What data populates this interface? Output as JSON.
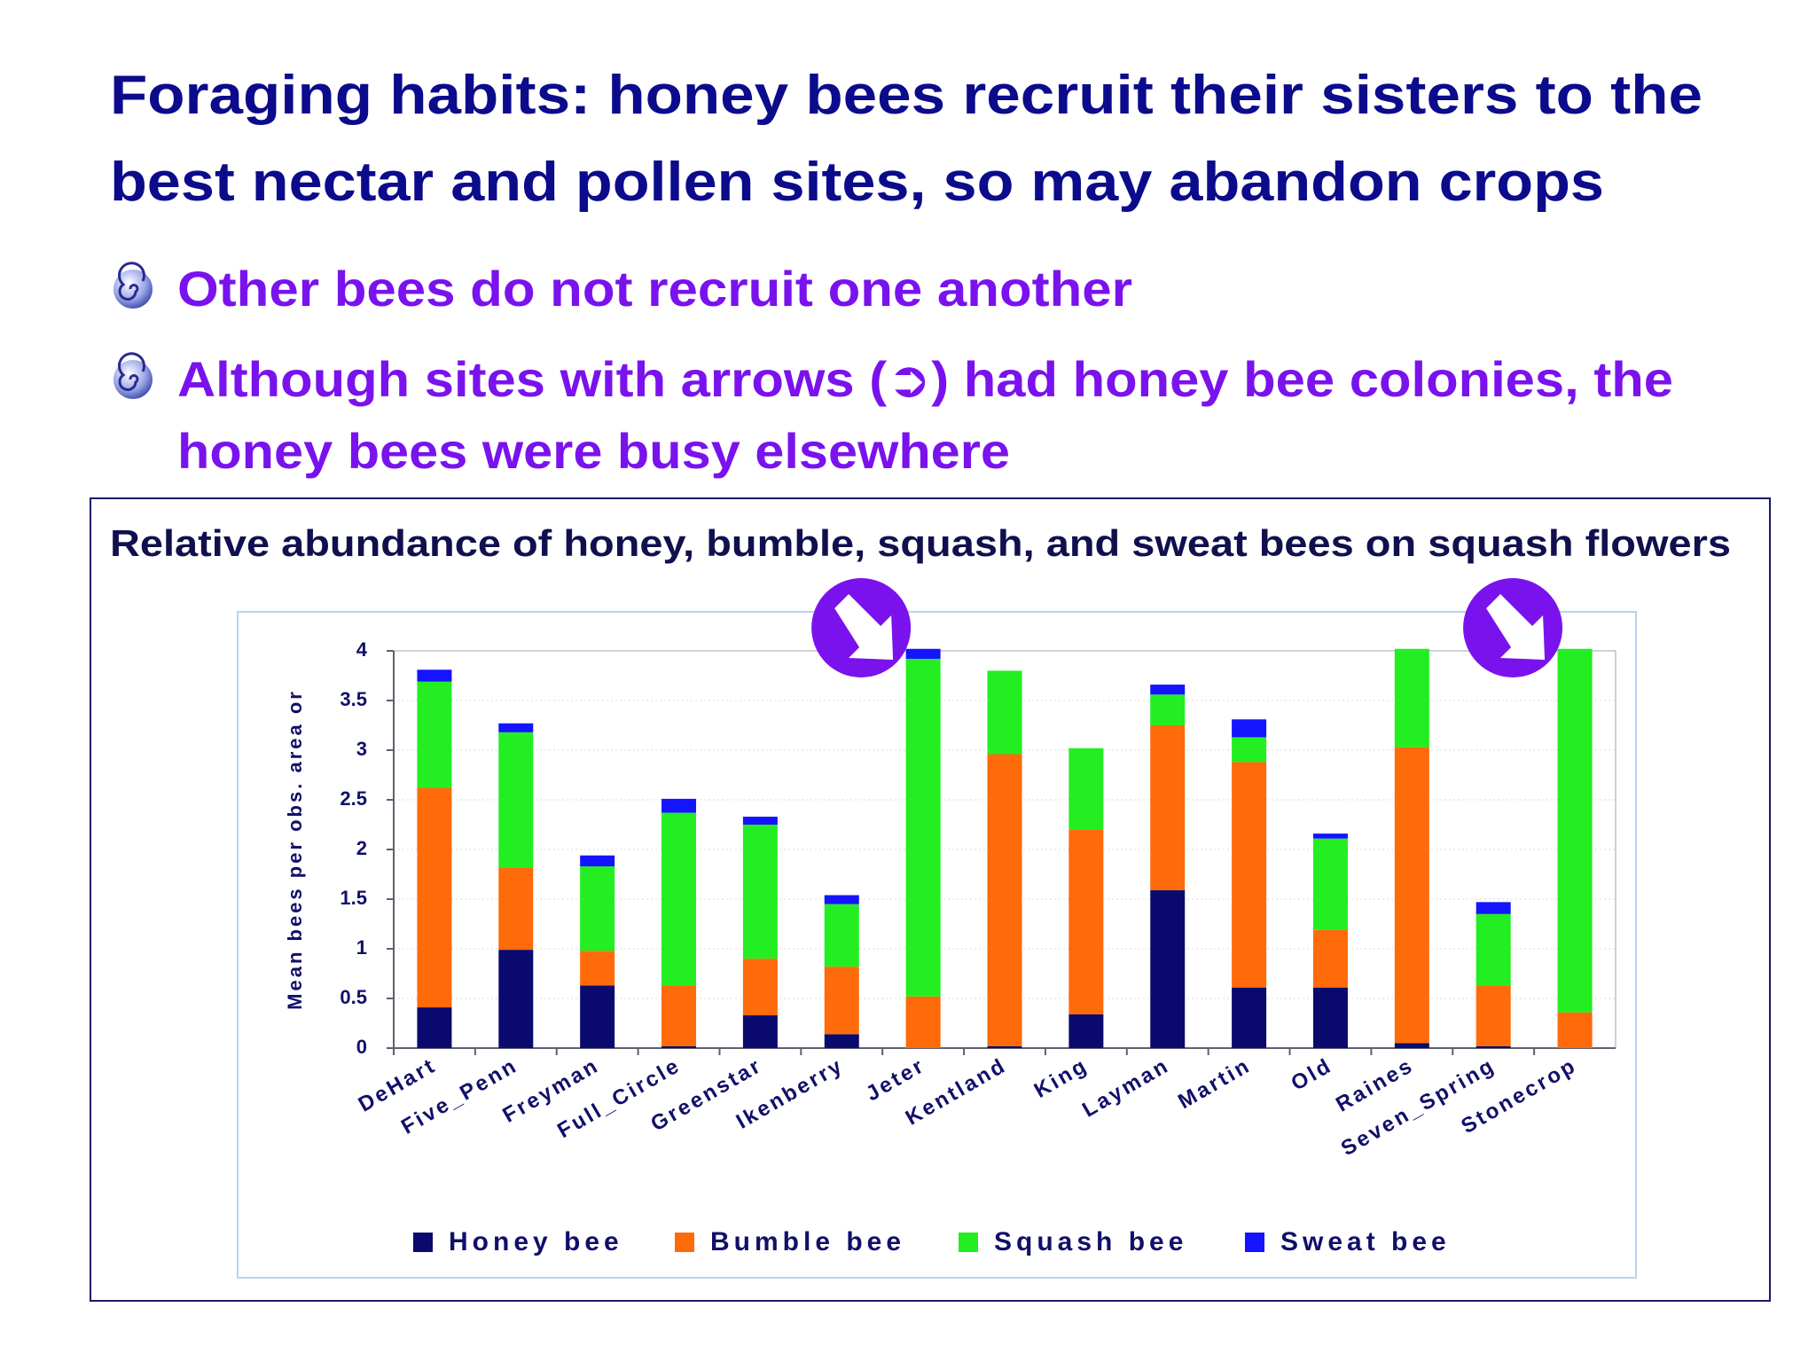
{
  "slide": {
    "title": [
      "Foraging habits:  honey bees recruit their sisters to the",
      "best nectar and pollen sites, so may abandon crops"
    ],
    "bullets": [
      [
        "Other bees do not recruit one another"
      ],
      [
        "Although sites with arrows (➲) had honey bee colonies, the",
        "honey bees were busy elsewhere"
      ]
    ]
  },
  "chart_data": {
    "type": "stacked_bar",
    "title": "Relative abundance of honey, bumble, squash, and sweat bees on squash flowers",
    "y_label": "Mean bees per obs. area or",
    "categories": [
      "DeHart",
      "Five_Penn",
      "Freyman",
      "Full_Circle",
      "Greenstar",
      "Ikenberry",
      "Jeter",
      "Kentland",
      "King",
      "Layman",
      "Martin",
      "Old",
      "Raines",
      "Seven_Spring",
      "Stonecrop"
    ],
    "series": [
      {
        "name": "Honey bee",
        "color": "#0a0a6e",
        "values": [
          0.41,
          0.99,
          0.63,
          0.02,
          0.33,
          0.14,
          0,
          0.02,
          0.34,
          1.59,
          0.61,
          0.61,
          0.05,
          0.02,
          0
        ]
      },
      {
        "name": "Bumble bee",
        "color": "#ff6a0a",
        "values": [
          2.21,
          0.83,
          0.35,
          0.61,
          0.57,
          0.68,
          0.52,
          2.94,
          1.86,
          1.66,
          2.27,
          0.58,
          2.98,
          0.61,
          0.36
        ]
      },
      {
        "name": "Squash bee",
        "color": "#22ee22",
        "values": [
          1.07,
          1.36,
          0.85,
          1.74,
          1.35,
          0.63,
          3.4,
          0.84,
          0.82,
          0.31,
          0.25,
          0.92,
          0.99,
          0.72,
          3.66
        ]
      },
      {
        "name": "Sweat bee",
        "color": "#1414ff",
        "values": [
          0.12,
          0.09,
          0.11,
          0.14,
          0.08,
          0.09,
          0.1,
          0,
          0,
          0.1,
          0.18,
          0.05,
          0,
          0.12,
          0
        ]
      }
    ],
    "ylim": [
      0,
      4
    ],
    "yticks": [
      0,
      0.5,
      1,
      1.5,
      2,
      2.5,
      3,
      3.5,
      4
    ],
    "grid": true,
    "legend": "bottom",
    "arrows": [
      6,
      14
    ]
  }
}
